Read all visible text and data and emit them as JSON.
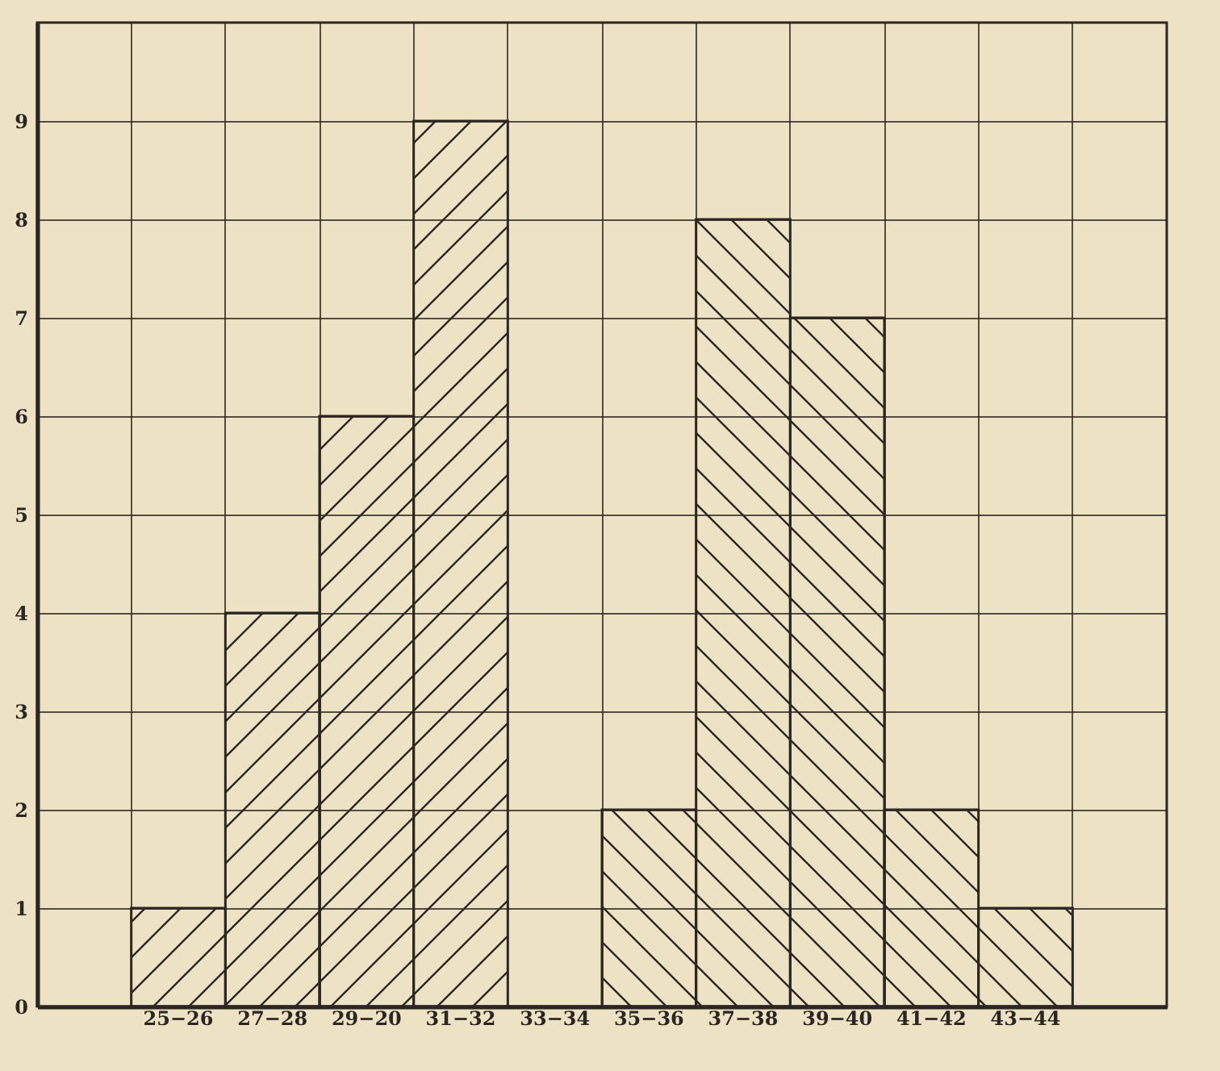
{
  "chart_data": {
    "type": "bar",
    "categories": [
      null,
      "25−26",
      "27−28",
      "29−20",
      "31−32",
      "33−34",
      "35−36",
      "37−38",
      "39−40",
      "41−42",
      "43−44",
      null
    ],
    "series": [
      {
        "color": "#2b2622",
        "values": [
          null,
          1,
          4,
          6,
          9,
          null,
          null,
          null,
          null,
          null,
          null,
          null
        ]
      },
      {
        "color": "#2b2622",
        "values": [
          null,
          null,
          null,
          null,
          null,
          0,
          2,
          8,
          7,
          2,
          1,
          null
        ]
      }
    ],
    "ylim": [
      0,
      10
    ],
    "yticks": [
      0,
      1,
      2,
      3,
      4,
      5,
      6,
      7,
      8,
      9
    ],
    "grid": true,
    "legend": false
  }
}
